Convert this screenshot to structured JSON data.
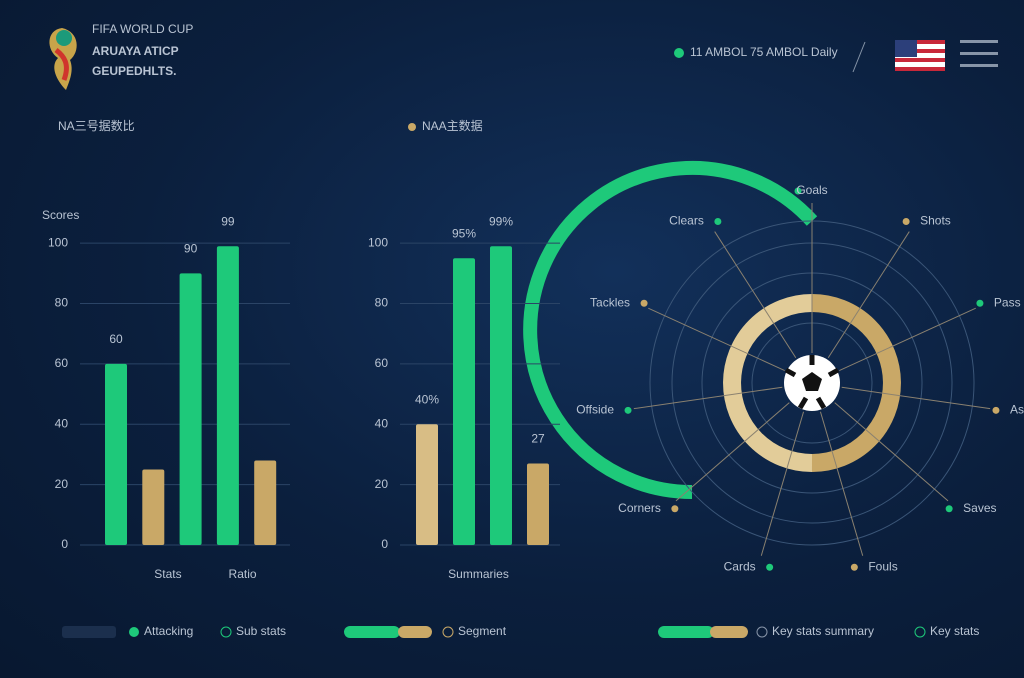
{
  "header": {
    "logo_small": "FIFA WORLD CUP",
    "title_line1": "ARUAYA ATICP",
    "title_line2": "GEUPEDHLTS.",
    "status_left": "11 AMBOL",
    "status_right": "75 AMBOL Daily"
  },
  "chart_data": [
    {
      "type": "bar",
      "title": "NA三号据数比",
      "y_label": "Scores",
      "categories": [
        null,
        "Stats",
        null,
        "Ratio",
        null
      ],
      "values": [
        60,
        25,
        90,
        99,
        28
      ],
      "value_labels": [
        "60",
        null,
        "90",
        "99",
        null
      ],
      "colors": [
        "#1ec97a",
        "#c9a867",
        "#1ec97a",
        "#1ec97a",
        "#c9a867"
      ],
      "ylim": [
        0,
        110
      ],
      "yticks": [
        0,
        20,
        40,
        60,
        80,
        100
      ],
      "grid": true
    },
    {
      "type": "bar",
      "title": "NAA主数据",
      "categories": [
        null,
        "Summaries",
        null,
        null
      ],
      "values": [
        40,
        95,
        99,
        27
      ],
      "value_labels": [
        "40%",
        "95%",
        "99%",
        "27"
      ],
      "colors": [
        "#d8bd85",
        "#1ec97a",
        "#1ec97a",
        "#c9a867"
      ],
      "ylim": [
        0,
        110
      ],
      "yticks": [
        0,
        20,
        40,
        60,
        80,
        100
      ],
      "grid": true
    }
  ],
  "radial": {
    "labels": [
      "Goals",
      "Shots",
      "Pass",
      "Assists",
      "Saves",
      "Fouls",
      "Cards",
      "Corners",
      "Offside",
      "Tackles",
      "Clears"
    ]
  },
  "footer": [
    "Attacking",
    "Sub stats",
    "Segment",
    "Key stats summary",
    "Key stats"
  ]
}
